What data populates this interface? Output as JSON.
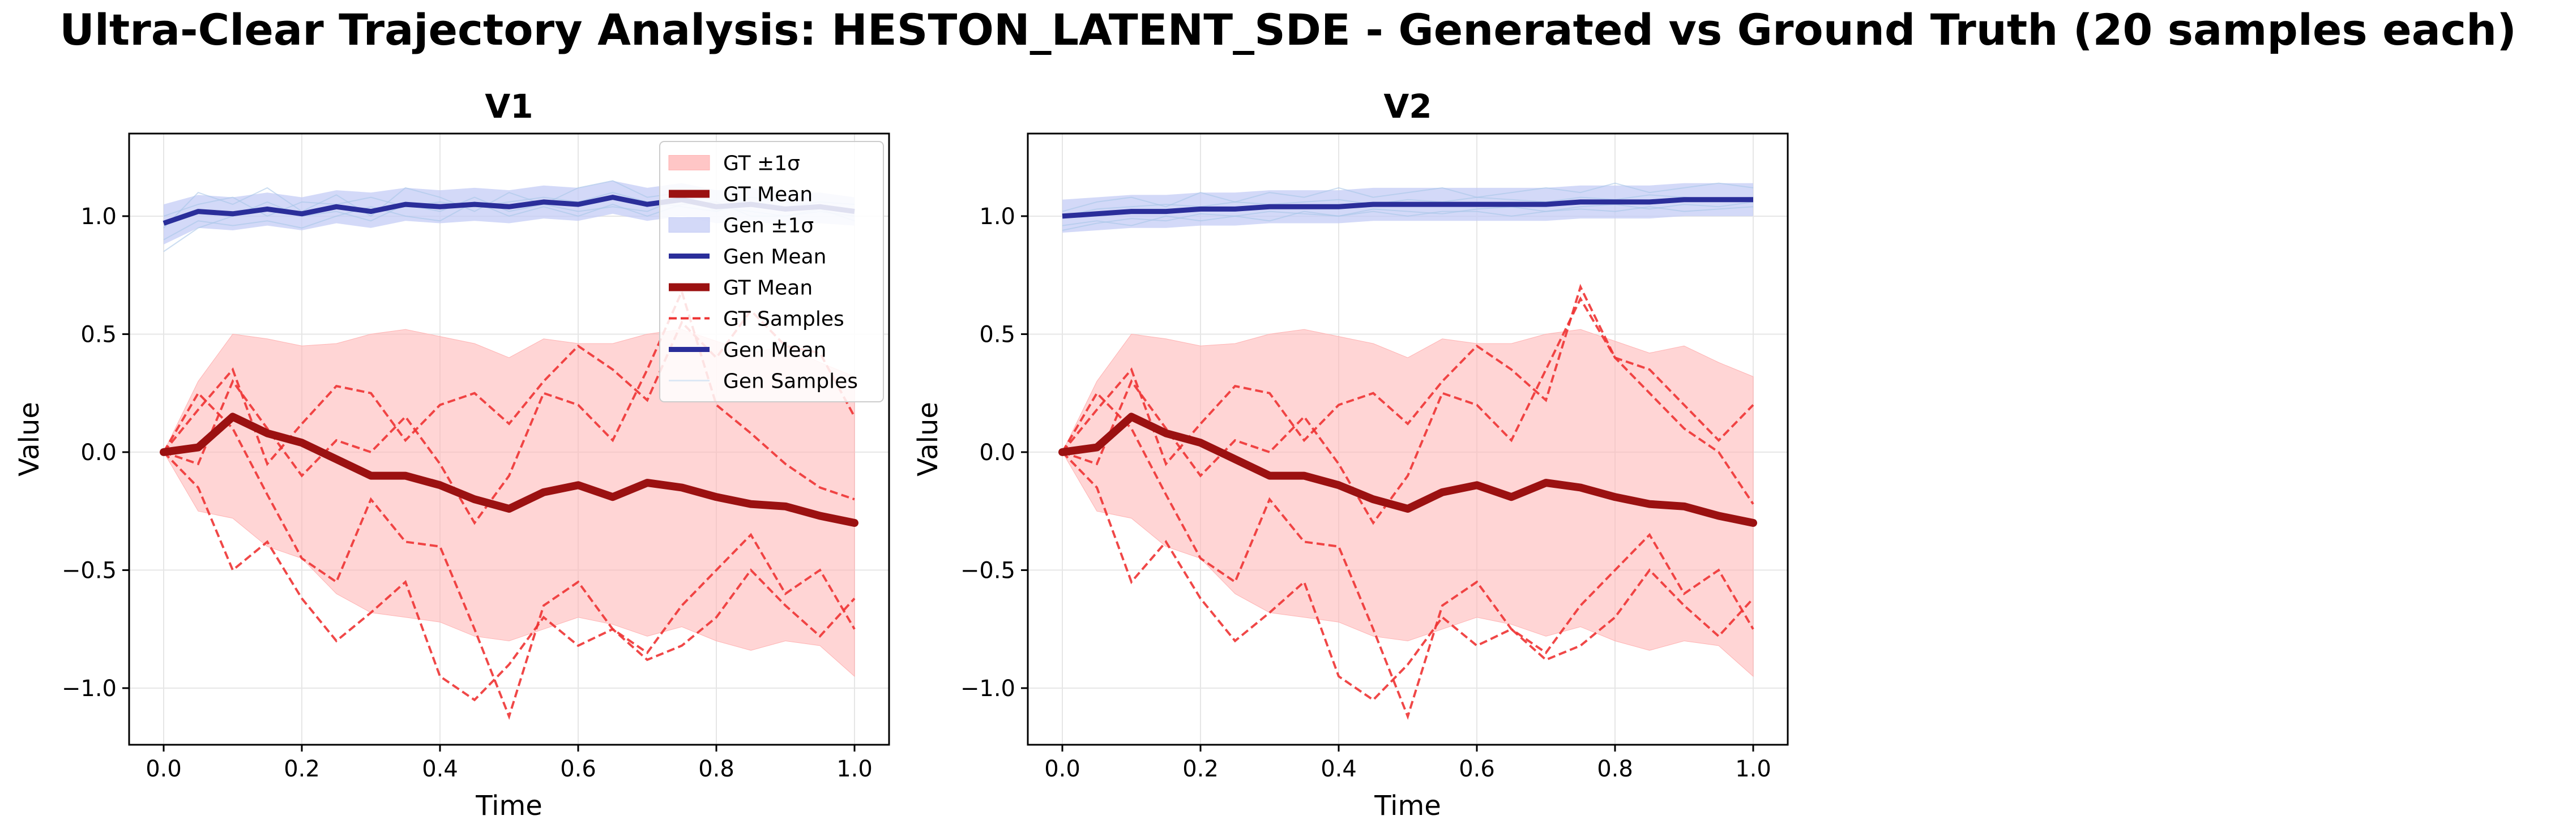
{
  "figure": {
    "title": "Ultra-Clear Trajectory Analysis: HESTON_LATENT_SDE - Generated vs Ground Truth (20 samples each)"
  },
  "colors": {
    "gt_band": "#ffb3b3",
    "gt_mean": "#9b1111",
    "gt_samples": "#ee3333",
    "gen_band": "#c4ccf5",
    "gen_mean": "#2a2e9a",
    "gen_samples": "#a9c6e8",
    "grid": "#e6e6e6"
  },
  "legend": {
    "items": [
      {
        "label": "GT ±1σ",
        "kind": "band",
        "color": "#ffb3b3"
      },
      {
        "label": "GT Mean",
        "kind": "line",
        "color": "#9b1111",
        "width": 14
      },
      {
        "label": "Gen ±1σ",
        "kind": "band",
        "color": "#c4ccf5"
      },
      {
        "label": "Gen Mean",
        "kind": "line",
        "color": "#2a2e9a",
        "width": 9
      },
      {
        "label": "GT Mean",
        "kind": "line",
        "color": "#9b1111",
        "width": 14
      },
      {
        "label": "GT Samples",
        "kind": "dashed",
        "color": "#ee3333",
        "width": 4
      },
      {
        "label": "Gen Mean",
        "kind": "line",
        "color": "#2a2e9a",
        "width": 9
      },
      {
        "label": "Gen Samples",
        "kind": "thin",
        "color": "#dde8f5",
        "width": 3
      }
    ]
  },
  "chart_data": [
    {
      "type": "line",
      "title": "V1",
      "xlabel": "Time",
      "ylabel": "Value",
      "xlim": [
        -0.05,
        1.05
      ],
      "ylim": [
        -1.24,
        1.35
      ],
      "xticks": [
        0.0,
        0.2,
        0.4,
        0.6,
        0.8,
        1.0
      ],
      "xtick_labels": [
        "0.0",
        "0.2",
        "0.4",
        "0.6",
        "0.8",
        "1.0"
      ],
      "yticks": [
        -1.0,
        -0.5,
        0.0,
        0.5,
        1.0
      ],
      "ytick_labels": [
        "−1.0",
        "−0.5",
        "0.0",
        "0.5",
        "1.0"
      ],
      "grid": true,
      "legend_position": "upper-right",
      "x": [
        0.0,
        0.05,
        0.1,
        0.15,
        0.2,
        0.25,
        0.3,
        0.35,
        0.4,
        0.45,
        0.5,
        0.55,
        0.6,
        0.65,
        0.7,
        0.75,
        0.8,
        0.85,
        0.9,
        0.95,
        1.0
      ],
      "series": [
        {
          "name": "GT Mean",
          "role": "mean",
          "values": [
            0.0,
            0.02,
            0.15,
            0.08,
            0.04,
            -0.03,
            -0.1,
            -0.1,
            -0.14,
            -0.2,
            -0.24,
            -0.17,
            -0.14,
            -0.19,
            -0.13,
            -0.15,
            -0.19,
            -0.22,
            -0.23,
            -0.27,
            -0.3
          ]
        },
        {
          "name": "GT ±1σ upper",
          "role": "band_upper",
          "values": [
            0.0,
            0.3,
            0.5,
            0.48,
            0.45,
            0.46,
            0.5,
            0.52,
            0.49,
            0.46,
            0.4,
            0.48,
            0.46,
            0.46,
            0.5,
            0.52,
            0.47,
            0.42,
            0.45,
            0.38,
            0.32
          ]
        },
        {
          "name": "GT ±1σ lower",
          "role": "band_lower",
          "values": [
            0.0,
            -0.25,
            -0.28,
            -0.4,
            -0.45,
            -0.6,
            -0.68,
            -0.7,
            -0.72,
            -0.78,
            -0.8,
            -0.75,
            -0.7,
            -0.73,
            -0.78,
            -0.74,
            -0.8,
            -0.84,
            -0.8,
            -0.82,
            -0.95
          ]
        },
        {
          "name": "GT Samples",
          "role": "sample",
          "values": [
            0.0,
            0.18,
            0.35,
            -0.05,
            0.12,
            0.28,
            0.25,
            0.05,
            0.2,
            0.25,
            0.12,
            0.3,
            0.45,
            0.35,
            0.22,
            0.55,
            0.4,
            0.6,
            0.45,
            0.42,
            0.15
          ]
        },
        {
          "name": "GT Samples",
          "role": "sample",
          "values": [
            0.0,
            -0.15,
            -0.5,
            -0.38,
            -0.62,
            -0.8,
            -0.68,
            -0.55,
            -0.95,
            -1.05,
            -0.9,
            -0.7,
            -0.82,
            -0.75,
            -0.88,
            -0.82,
            -0.7,
            -0.5,
            -0.65,
            -0.78,
            -0.62
          ]
        },
        {
          "name": "GT Samples",
          "role": "sample",
          "values": [
            0.0,
            0.25,
            0.1,
            -0.18,
            -0.45,
            -0.55,
            -0.2,
            -0.38,
            -0.4,
            -0.75,
            -1.12,
            -0.65,
            -0.55,
            -0.75,
            -0.85,
            -0.65,
            -0.5,
            -0.35,
            -0.6,
            -0.5,
            -0.75
          ]
        },
        {
          "name": "GT Samples",
          "role": "sample",
          "values": [
            0.0,
            -0.05,
            0.3,
            0.1,
            -0.1,
            0.05,
            0.0,
            0.15,
            -0.05,
            -0.3,
            -0.1,
            0.25,
            0.2,
            0.05,
            0.35,
            0.68,
            0.2,
            0.08,
            -0.05,
            -0.15,
            -0.2
          ]
        }
      ]
    },
    {
      "type": "line",
      "title": "V2",
      "xlabel": "Time",
      "ylabel": "Value",
      "xlim": [
        -0.05,
        1.05
      ],
      "ylim": [
        -1.24,
        1.35
      ],
      "xticks": [
        0.0,
        0.2,
        0.4,
        0.6,
        0.8,
        1.0
      ],
      "xtick_labels": [
        "0.0",
        "0.2",
        "0.4",
        "0.6",
        "0.8",
        "1.0"
      ],
      "yticks": [
        -1.0,
        -0.5,
        0.0,
        0.5,
        1.0
      ],
      "ytick_labels": [
        "−1.0",
        "−0.5",
        "0.0",
        "0.5",
        "1.0"
      ],
      "grid": true,
      "x": [
        0.0,
        0.05,
        0.1,
        0.15,
        0.2,
        0.25,
        0.3,
        0.35,
        0.4,
        0.45,
        0.5,
        0.55,
        0.6,
        0.65,
        0.7,
        0.75,
        0.8,
        0.85,
        0.9,
        0.95,
        1.0
      ],
      "series": [
        {
          "name": "GT Mean",
          "role": "mean",
          "values": [
            0.0,
            0.02,
            0.15,
            0.08,
            0.04,
            -0.03,
            -0.1,
            -0.1,
            -0.14,
            -0.2,
            -0.24,
            -0.17,
            -0.14,
            -0.19,
            -0.13,
            -0.15,
            -0.19,
            -0.22,
            -0.23,
            -0.27,
            -0.3
          ]
        },
        {
          "name": "GT ±1σ upper",
          "role": "band_upper",
          "values": [
            0.0,
            0.3,
            0.5,
            0.48,
            0.45,
            0.46,
            0.5,
            0.52,
            0.49,
            0.46,
            0.4,
            0.48,
            0.46,
            0.46,
            0.5,
            0.52,
            0.47,
            0.42,
            0.45,
            0.38,
            0.32
          ]
        },
        {
          "name": "GT ±1σ lower",
          "role": "band_lower",
          "values": [
            0.0,
            -0.25,
            -0.28,
            -0.4,
            -0.45,
            -0.6,
            -0.68,
            -0.7,
            -0.72,
            -0.78,
            -0.8,
            -0.75,
            -0.7,
            -0.73,
            -0.78,
            -0.74,
            -0.8,
            -0.84,
            -0.8,
            -0.82,
            -0.95
          ]
        },
        {
          "name": "GT Samples",
          "role": "sample",
          "values": [
            0.0,
            0.18,
            0.35,
            -0.05,
            0.12,
            0.28,
            0.25,
            0.05,
            0.2,
            0.25,
            0.12,
            0.3,
            0.45,
            0.35,
            0.22,
            0.7,
            0.4,
            0.35,
            0.2,
            0.05,
            0.2
          ]
        },
        {
          "name": "GT Samples",
          "role": "sample",
          "values": [
            0.0,
            -0.15,
            -0.55,
            -0.38,
            -0.62,
            -0.8,
            -0.68,
            -0.55,
            -0.95,
            -1.05,
            -0.9,
            -0.7,
            -0.82,
            -0.75,
            -0.88,
            -0.82,
            -0.7,
            -0.5,
            -0.65,
            -0.78,
            -0.62
          ]
        },
        {
          "name": "GT Samples",
          "role": "sample",
          "values": [
            0.0,
            0.25,
            0.1,
            -0.18,
            -0.45,
            -0.55,
            -0.2,
            -0.38,
            -0.4,
            -0.75,
            -1.12,
            -0.65,
            -0.55,
            -0.75,
            -0.85,
            -0.65,
            -0.5,
            -0.35,
            -0.6,
            -0.5,
            -0.75
          ]
        },
        {
          "name": "GT Samples",
          "role": "sample",
          "values": [
            0.0,
            -0.05,
            0.3,
            0.1,
            -0.1,
            0.05,
            0.0,
            0.15,
            -0.05,
            -0.3,
            -0.1,
            0.25,
            0.2,
            0.05,
            0.35,
            0.65,
            0.4,
            0.25,
            0.1,
            0.0,
            -0.22
          ]
        }
      ]
    }
  ],
  "gen_data": [
    {
      "mean": [
        0.97,
        1.02,
        1.01,
        1.03,
        1.01,
        1.04,
        1.02,
        1.05,
        1.04,
        1.05,
        1.04,
        1.06,
        1.05,
        1.08,
        1.05,
        1.07,
        1.04,
        1.05,
        1.03,
        1.04,
        1.02
      ],
      "band_upper": [
        1.05,
        1.09,
        1.08,
        1.1,
        1.08,
        1.11,
        1.1,
        1.12,
        1.11,
        1.12,
        1.11,
        1.13,
        1.12,
        1.15,
        1.12,
        1.14,
        1.11,
        1.12,
        1.1,
        1.1,
        1.08
      ],
      "band_lower": [
        0.88,
        0.95,
        0.94,
        0.96,
        0.94,
        0.97,
        0.95,
        0.98,
        0.97,
        0.98,
        0.97,
        0.99,
        0.98,
        1.01,
        0.98,
        1.0,
        0.97,
        0.98,
        0.96,
        0.97,
        0.96
      ],
      "samples": [
        [
          0.95,
          1.1,
          1.05,
          1.12,
          1.02,
          1.09,
          1.0,
          1.12,
          1.08,
          1.02,
          1.1,
          1.05,
          1.12,
          1.15,
          1.08,
          1.1,
          1.02,
          1.08,
          1.06,
          1.04,
          1.02
        ],
        [
          0.9,
          0.98,
          0.96,
          0.98,
          0.95,
          1.0,
          1.04,
          1.0,
          0.98,
          1.06,
          1.0,
          1.04,
          1.0,
          1.05,
          1.0,
          1.05,
          1.06,
          1.0,
          1.0,
          1.02,
          1.0
        ],
        [
          1.0,
          1.05,
          1.08,
          1.0,
          1.06,
          1.05,
          1.08,
          1.04,
          1.06,
          1.04,
          1.06,
          1.08,
          1.06,
          1.1,
          1.06,
          1.04,
          1.02,
          1.06,
          1.04,
          1.06,
          1.05
        ],
        [
          0.85,
          0.95,
          1.0,
          1.06,
          1.0,
          1.02,
          0.98,
          1.05,
          1.02,
          1.08,
          1.02,
          1.05,
          1.02,
          1.04,
          1.02,
          1.08,
          1.04,
          1.02,
          1.0,
          1.03,
          0.98
        ]
      ]
    },
    {
      "mean": [
        1.0,
        1.01,
        1.02,
        1.02,
        1.03,
        1.03,
        1.04,
        1.04,
        1.04,
        1.05,
        1.05,
        1.05,
        1.05,
        1.05,
        1.05,
        1.06,
        1.06,
        1.06,
        1.07,
        1.07,
        1.07
      ],
      "band_upper": [
        1.07,
        1.08,
        1.09,
        1.09,
        1.1,
        1.1,
        1.11,
        1.11,
        1.11,
        1.12,
        1.12,
        1.12,
        1.12,
        1.12,
        1.12,
        1.13,
        1.13,
        1.13,
        1.14,
        1.14,
        1.14
      ],
      "band_lower": [
        0.93,
        0.94,
        0.95,
        0.95,
        0.96,
        0.96,
        0.97,
        0.97,
        0.97,
        0.98,
        0.98,
        0.98,
        0.98,
        0.98,
        0.98,
        0.99,
        0.99,
        0.99,
        1.0,
        1.0,
        1.0
      ],
      "samples": [
        [
          1.02,
          1.06,
          1.08,
          1.04,
          1.1,
          1.06,
          1.1,
          1.08,
          1.12,
          1.08,
          1.1,
          1.12,
          1.08,
          1.1,
          1.12,
          1.1,
          1.14,
          1.1,
          1.12,
          1.14,
          1.12
        ],
        [
          0.96,
          0.98,
          0.96,
          1.0,
          0.98,
          1.0,
          0.98,
          1.02,
          1.0,
          1.02,
          1.0,
          1.02,
          1.02,
          1.0,
          1.02,
          1.03,
          1.02,
          1.04,
          1.02,
          1.03,
          1.04
        ],
        [
          1.0,
          1.03,
          1.04,
          1.05,
          1.04,
          1.06,
          1.05,
          1.06,
          1.07,
          1.05,
          1.07,
          1.06,
          1.08,
          1.07,
          1.06,
          1.08,
          1.07,
          1.09,
          1.08,
          1.07,
          1.08
        ],
        [
          0.94,
          0.97,
          0.99,
          0.98,
          1.01,
          1.0,
          1.02,
          1.01,
          1.0,
          1.03,
          1.02,
          1.01,
          1.03,
          1.04,
          1.02,
          1.04,
          1.05,
          1.03,
          1.05,
          1.04,
          1.06
        ]
      ]
    }
  ]
}
